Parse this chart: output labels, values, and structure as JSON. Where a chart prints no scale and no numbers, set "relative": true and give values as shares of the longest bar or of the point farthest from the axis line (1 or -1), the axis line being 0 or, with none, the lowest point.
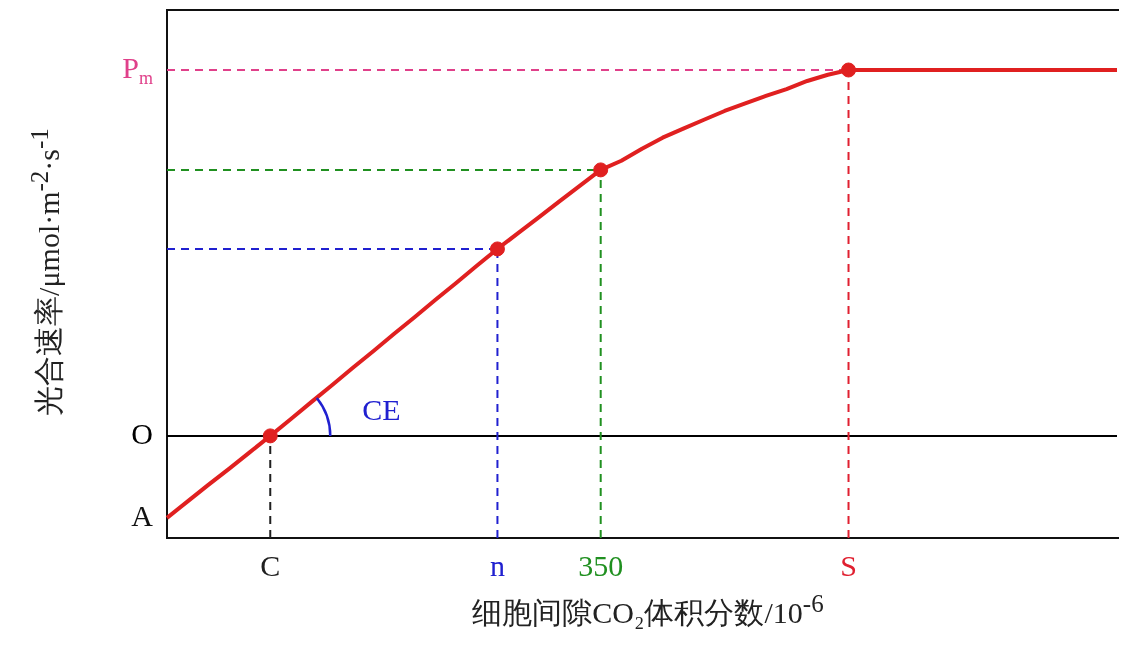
{
  "chart_data": {
    "type": "line",
    "relative": true,
    "xlabel": "细胞间隙CO₂体积分数/10$^{-6}$",
    "ylabel": "光合速率/μmol·m$^{-2}$·s$^{-1}$",
    "marker": "none",
    "legend": false,
    "categories": [
      null,
      null,
      null,
      null,
      null,
      "C",
      null,
      null,
      null,
      null,
      null,
      null,
      null,
      null,
      null,
      null,
      "n",
      null,
      null,
      null,
      null,
      "350",
      null,
      null,
      null,
      null,
      null,
      null,
      null,
      null,
      null,
      null,
      null,
      "S",
      null,
      null,
      null,
      null,
      null,
      null,
      null,
      null,
      null,
      null,
      null,
      null,
      null
    ],
    "series": [
      {
        "color": "#e02020",
        "values": [
          -0.224,
          -0.179,
          -0.134,
          -0.09,
          -0.045,
          0,
          0.046,
          0.093,
          0.139,
          0.186,
          0.232,
          0.279,
          0.325,
          0.372,
          0.418,
          0.465,
          0.511,
          0.554,
          0.597,
          0.641,
          0.684,
          0.727,
          0.752,
          0.785,
          0.815,
          0.84,
          0.864,
          0.888,
          0.909,
          0.929,
          0.948,
          0.97,
          0.987,
          1,
          1,
          1,
          1,
          1,
          1,
          1,
          1,
          1,
          1,
          1,
          1,
          1,
          1
        ]
      },
      {
        "type": "scatter",
        "marker": "circle",
        "color": "#e02020",
        "x": [
          "C",
          "n",
          "350",
          "S"
        ],
        "values": [
          0,
          0.511,
          0.727,
          1
        ]
      }
    ],
    "ref_lines": [
      {
        "axis": "y",
        "value": 0,
        "label": "O",
        "color": "#000000",
        "line_style": "solid"
      },
      {
        "axis": "y",
        "value": 1,
        "label": "P$_{m}$",
        "color": "#e0408a",
        "line_style": "dashed"
      },
      {
        "axis": "y",
        "value": 0.511,
        "color": "#2020d0",
        "line_style": "dashed"
      },
      {
        "axis": "y",
        "value": 0.727,
        "color": "#209020",
        "line_style": "dashed"
      },
      {
        "axis": "x",
        "value": "C",
        "color": "#202020",
        "line_style": "dashed"
      },
      {
        "axis": "x",
        "value": "n",
        "color": "#2020d0",
        "line_style": "dashed"
      },
      {
        "axis": "x",
        "value": "350",
        "color": "#209020",
        "line_style": "dashed"
      },
      {
        "axis": "x",
        "value": "S",
        "color": "#e02030",
        "line_style": "dashed"
      }
    ],
    "annotations": [
      "A",
      "CE"
    ]
  }
}
